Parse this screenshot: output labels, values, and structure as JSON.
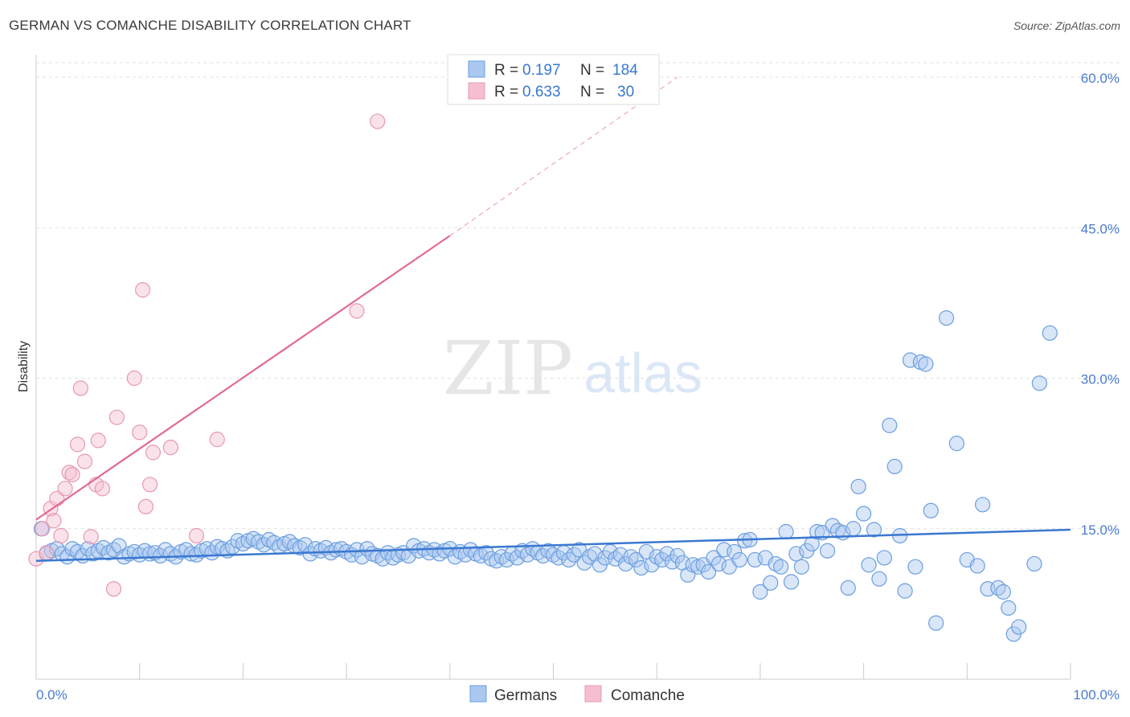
{
  "header": {
    "title": "GERMAN VS COMANCHE DISABILITY CORRELATION CHART",
    "source": "Source: ZipAtlas.com"
  },
  "watermark": {
    "zip": "ZIP",
    "atlas": "atlas"
  },
  "colors": {
    "german_fill": "#aac8f0",
    "german_stroke": "#6a9ee0",
    "german_line": "#3a78d0",
    "comanche_fill": "#f5bfd0",
    "comanche_stroke": "#e898b0",
    "comanche_line": "#e26a94",
    "axis_text": "#4a7bd0"
  },
  "legend_top": {
    "rows": [
      {
        "r_label": "R =",
        "r_value": "0.197",
        "n_label": "N =",
        "n_value": "184"
      },
      {
        "r_label": "R =",
        "r_value": "0.633",
        "n_label": "N =",
        "n_value": "30"
      }
    ]
  },
  "legend_bottom": {
    "items": [
      "Germans",
      "Comanche"
    ]
  },
  "chart_data": {
    "type": "scatter",
    "ylabel": "Disability",
    "xlim": [
      0,
      100
    ],
    "ylim": [
      0,
      60
    ],
    "x_tick_labels": [
      "0.0%",
      "100.0%"
    ],
    "y_ticks": [
      15,
      30,
      45,
      60
    ],
    "y_tick_labels": [
      "15.0%",
      "30.0%",
      "45.0%",
      "60.0%"
    ],
    "grid": true,
    "series": [
      {
        "name": "Germans",
        "trend": {
          "x0": 0,
          "y0": 11.8,
          "x1": 100,
          "y1": 14.9
        },
        "points": [
          [
            0.5,
            15
          ],
          [
            1,
            12.5
          ],
          [
            1.5,
            12.8
          ],
          [
            2,
            13
          ],
          [
            2.5,
            12.5
          ],
          [
            3,
            12.2
          ],
          [
            3.5,
            13
          ],
          [
            4,
            12.7
          ],
          [
            4.5,
            12.3
          ],
          [
            5,
            13
          ],
          [
            5.5,
            12.5
          ],
          [
            6,
            12.8
          ],
          [
            6.5,
            13.1
          ],
          [
            7,
            12.6
          ],
          [
            7.5,
            12.9
          ],
          [
            8,
            13.3
          ],
          [
            8.5,
            12.2
          ],
          [
            9,
            12.5
          ],
          [
            9.5,
            12.7
          ],
          [
            10,
            12.4
          ],
          [
            10.5,
            12.8
          ],
          [
            11,
            12.5
          ],
          [
            11.5,
            12.6
          ],
          [
            12,
            12.3
          ],
          [
            12.5,
            12.9
          ],
          [
            13,
            12.5
          ],
          [
            13.5,
            12.2
          ],
          [
            14,
            12.7
          ],
          [
            14.5,
            12.9
          ],
          [
            15,
            12.5
          ],
          [
            15.5,
            12.4
          ],
          [
            16,
            12.8
          ],
          [
            16.5,
            13
          ],
          [
            17,
            12.6
          ],
          [
            17.5,
            13.2
          ],
          [
            18,
            13
          ],
          [
            18.5,
            12.8
          ],
          [
            19,
            13.2
          ],
          [
            19.5,
            13.8
          ],
          [
            20,
            13.5
          ],
          [
            20.5,
            13.8
          ],
          [
            21,
            14
          ],
          [
            21.5,
            13.7
          ],
          [
            22,
            13.4
          ],
          [
            22.5,
            13.9
          ],
          [
            23,
            13.6
          ],
          [
            23.5,
            13.2
          ],
          [
            24,
            13.5
          ],
          [
            24.5,
            13.7
          ],
          [
            25,
            13.3
          ],
          [
            25.5,
            13.1
          ],
          [
            26,
            13.4
          ],
          [
            26.5,
            12.5
          ],
          [
            27,
            13
          ],
          [
            27.5,
            12.8
          ],
          [
            28,
            13.1
          ],
          [
            28.5,
            12.6
          ],
          [
            29,
            12.9
          ],
          [
            29.5,
            13
          ],
          [
            30,
            12.7
          ],
          [
            30.5,
            12.4
          ],
          [
            31,
            12.9
          ],
          [
            31.5,
            12.2
          ],
          [
            32,
            13
          ],
          [
            32.5,
            12.5
          ],
          [
            33,
            12.3
          ],
          [
            33.5,
            12
          ],
          [
            34,
            12.6
          ],
          [
            34.5,
            12.1
          ],
          [
            35,
            12.4
          ],
          [
            35.5,
            12.6
          ],
          [
            36,
            12.3
          ],
          [
            36.5,
            13.3
          ],
          [
            37,
            12.8
          ],
          [
            37.5,
            13
          ],
          [
            38,
            12.6
          ],
          [
            38.5,
            12.9
          ],
          [
            39,
            12.5
          ],
          [
            39.5,
            12.8
          ],
          [
            40,
            13
          ],
          [
            40.5,
            12.2
          ],
          [
            41,
            12.7
          ],
          [
            41.5,
            12.4
          ],
          [
            42,
            12.9
          ],
          [
            42.5,
            12.5
          ],
          [
            43,
            12.3
          ],
          [
            43.5,
            12.6
          ],
          [
            44,
            12
          ],
          [
            44.5,
            11.8
          ],
          [
            45,
            12.2
          ],
          [
            45.5,
            11.9
          ],
          [
            46,
            12.5
          ],
          [
            46.5,
            12.1
          ],
          [
            47,
            12.8
          ],
          [
            47.5,
            12.4
          ],
          [
            48,
            13
          ],
          [
            48.5,
            12.6
          ],
          [
            49,
            12.3
          ],
          [
            49.5,
            12.8
          ],
          [
            50,
            12.4
          ],
          [
            50.5,
            12.1
          ],
          [
            51,
            12.6
          ],
          [
            51.5,
            11.9
          ],
          [
            52,
            12.4
          ],
          [
            52.5,
            12.9
          ],
          [
            53,
            11.6
          ],
          [
            53.5,
            12.2
          ],
          [
            54,
            12.5
          ],
          [
            54.5,
            11.4
          ],
          [
            55,
            12.1
          ],
          [
            55.5,
            12.7
          ],
          [
            56,
            12
          ],
          [
            56.5,
            12.4
          ],
          [
            57,
            11.5
          ],
          [
            57.5,
            12.2
          ],
          [
            58,
            11.9
          ],
          [
            58.5,
            11.1
          ],
          [
            59,
            12.7
          ],
          [
            59.5,
            11.4
          ],
          [
            60,
            12.2
          ],
          [
            60.5,
            11.9
          ],
          [
            61,
            12.5
          ],
          [
            61.5,
            11.7
          ],
          [
            62,
            12.3
          ],
          [
            62.5,
            11.6
          ],
          [
            63,
            10.4
          ],
          [
            63.5,
            11.4
          ],
          [
            64,
            11.2
          ],
          [
            64.5,
            11.4
          ],
          [
            65,
            10.7
          ],
          [
            65.5,
            12.1
          ],
          [
            66,
            11.5
          ],
          [
            66.5,
            12.9
          ],
          [
            67,
            11.2
          ],
          [
            67.5,
            12.7
          ],
          [
            68,
            11.9
          ],
          [
            68.5,
            13.8
          ],
          [
            69,
            13.9
          ],
          [
            69.5,
            11.9
          ],
          [
            70,
            8.7
          ],
          [
            70.5,
            12.1
          ],
          [
            71,
            9.6
          ],
          [
            71.5,
            11.5
          ],
          [
            72,
            11.2
          ],
          [
            72.5,
            14.7
          ],
          [
            73,
            9.7
          ],
          [
            73.5,
            12.5
          ],
          [
            74,
            11.2
          ],
          [
            74.5,
            12.8
          ],
          [
            75,
            13.5
          ],
          [
            75.5,
            14.7
          ],
          [
            76,
            14.6
          ],
          [
            76.5,
            12.8
          ],
          [
            77,
            15.3
          ],
          [
            77.5,
            14.8
          ],
          [
            78,
            14.6
          ],
          [
            78.5,
            9.1
          ],
          [
            79,
            15
          ],
          [
            79.5,
            19.2
          ],
          [
            80,
            16.5
          ],
          [
            80.5,
            11.4
          ],
          [
            81,
            14.9
          ],
          [
            81.5,
            10
          ],
          [
            82,
            12.1
          ],
          [
            82.5,
            25.3
          ],
          [
            83,
            21.2
          ],
          [
            83.5,
            14.3
          ],
          [
            84,
            8.8
          ],
          [
            84.5,
            31.8
          ],
          [
            85,
            11.2
          ],
          [
            85.5,
            31.6
          ],
          [
            86,
            31.4
          ],
          [
            86.5,
            16.8
          ],
          [
            87,
            5.6
          ],
          [
            88,
            36
          ],
          [
            89,
            23.5
          ],
          [
            90,
            11.9
          ],
          [
            91,
            11.3
          ],
          [
            91.5,
            17.4
          ],
          [
            92,
            9
          ],
          [
            93,
            9.1
          ],
          [
            93.5,
            8.7
          ],
          [
            94,
            7.1
          ],
          [
            94.5,
            4.5
          ],
          [
            95,
            5.2
          ],
          [
            96.5,
            11.5
          ],
          [
            97,
            29.5
          ],
          [
            98,
            34.5
          ]
        ]
      },
      {
        "name": "Comanche",
        "trend": {
          "x0": 0,
          "y0": 15.9,
          "x1": 40,
          "y1": 44.2,
          "x2": 62,
          "y2": 60.0
        },
        "points": [
          [
            0,
            12
          ],
          [
            0.6,
            15
          ],
          [
            1,
            12.6
          ],
          [
            1.4,
            17
          ],
          [
            1.7,
            15.8
          ],
          [
            2,
            18
          ],
          [
            2.4,
            14.3
          ],
          [
            2.8,
            19
          ],
          [
            3.2,
            20.6
          ],
          [
            3.5,
            20.4
          ],
          [
            4,
            23.4
          ],
          [
            4.3,
            29
          ],
          [
            4.7,
            21.7
          ],
          [
            5.3,
            14.2
          ],
          [
            5.8,
            19.4
          ],
          [
            6,
            23.8
          ],
          [
            6.4,
            19
          ],
          [
            7.5,
            9
          ],
          [
            7.8,
            26.1
          ],
          [
            9.5,
            30
          ],
          [
            10,
            24.6
          ],
          [
            10.3,
            38.8
          ],
          [
            10.6,
            17.2
          ],
          [
            11,
            19.4
          ],
          [
            11.3,
            22.6
          ],
          [
            13,
            23.1
          ],
          [
            15.5,
            14.3
          ],
          [
            17.5,
            23.9
          ],
          [
            31,
            36.7
          ],
          [
            33,
            55.6
          ]
        ]
      }
    ]
  }
}
